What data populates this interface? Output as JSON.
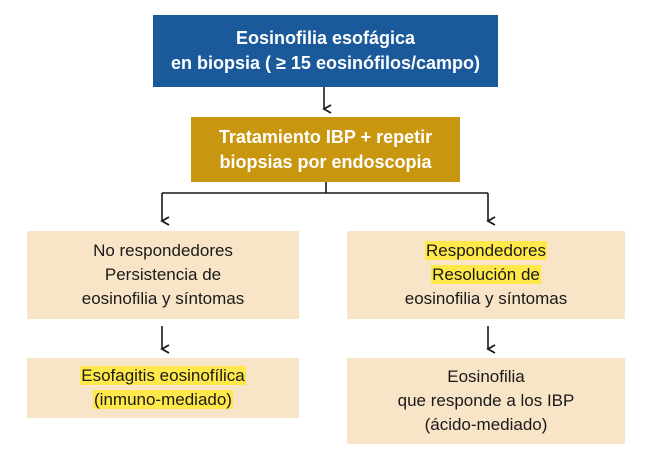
{
  "top_box": {
    "line1": "Eosinofilia esofágica",
    "line2": "en biopsia ( ≥ 15 eosinófilos/campo)"
  },
  "treatment_box": {
    "line1": "Tratamiento IBP + repetir",
    "line2": "biopsias por endoscopia"
  },
  "left_branch": {
    "line1": "No respondedores",
    "line2": "Persistencia de",
    "line3": "eosinofilia y síntomas"
  },
  "right_branch": {
    "line1": "Respondedores",
    "line2": "Resolución de",
    "line3": "eosinofilia y síntomas"
  },
  "left_outcome": {
    "line1": "Esofagitis eosinofílica",
    "line2": "(inmuno-mediado)"
  },
  "right_outcome": {
    "line1": "Eosinofilia",
    "line2": "que responde a los IBP",
    "line3": "(ácido-mediado)"
  },
  "colors": {
    "top_box": "#1a5a9a",
    "treatment_box": "#c9960f",
    "branch_boxes": "#f8e4c6",
    "highlight": "#ffe94a"
  }
}
